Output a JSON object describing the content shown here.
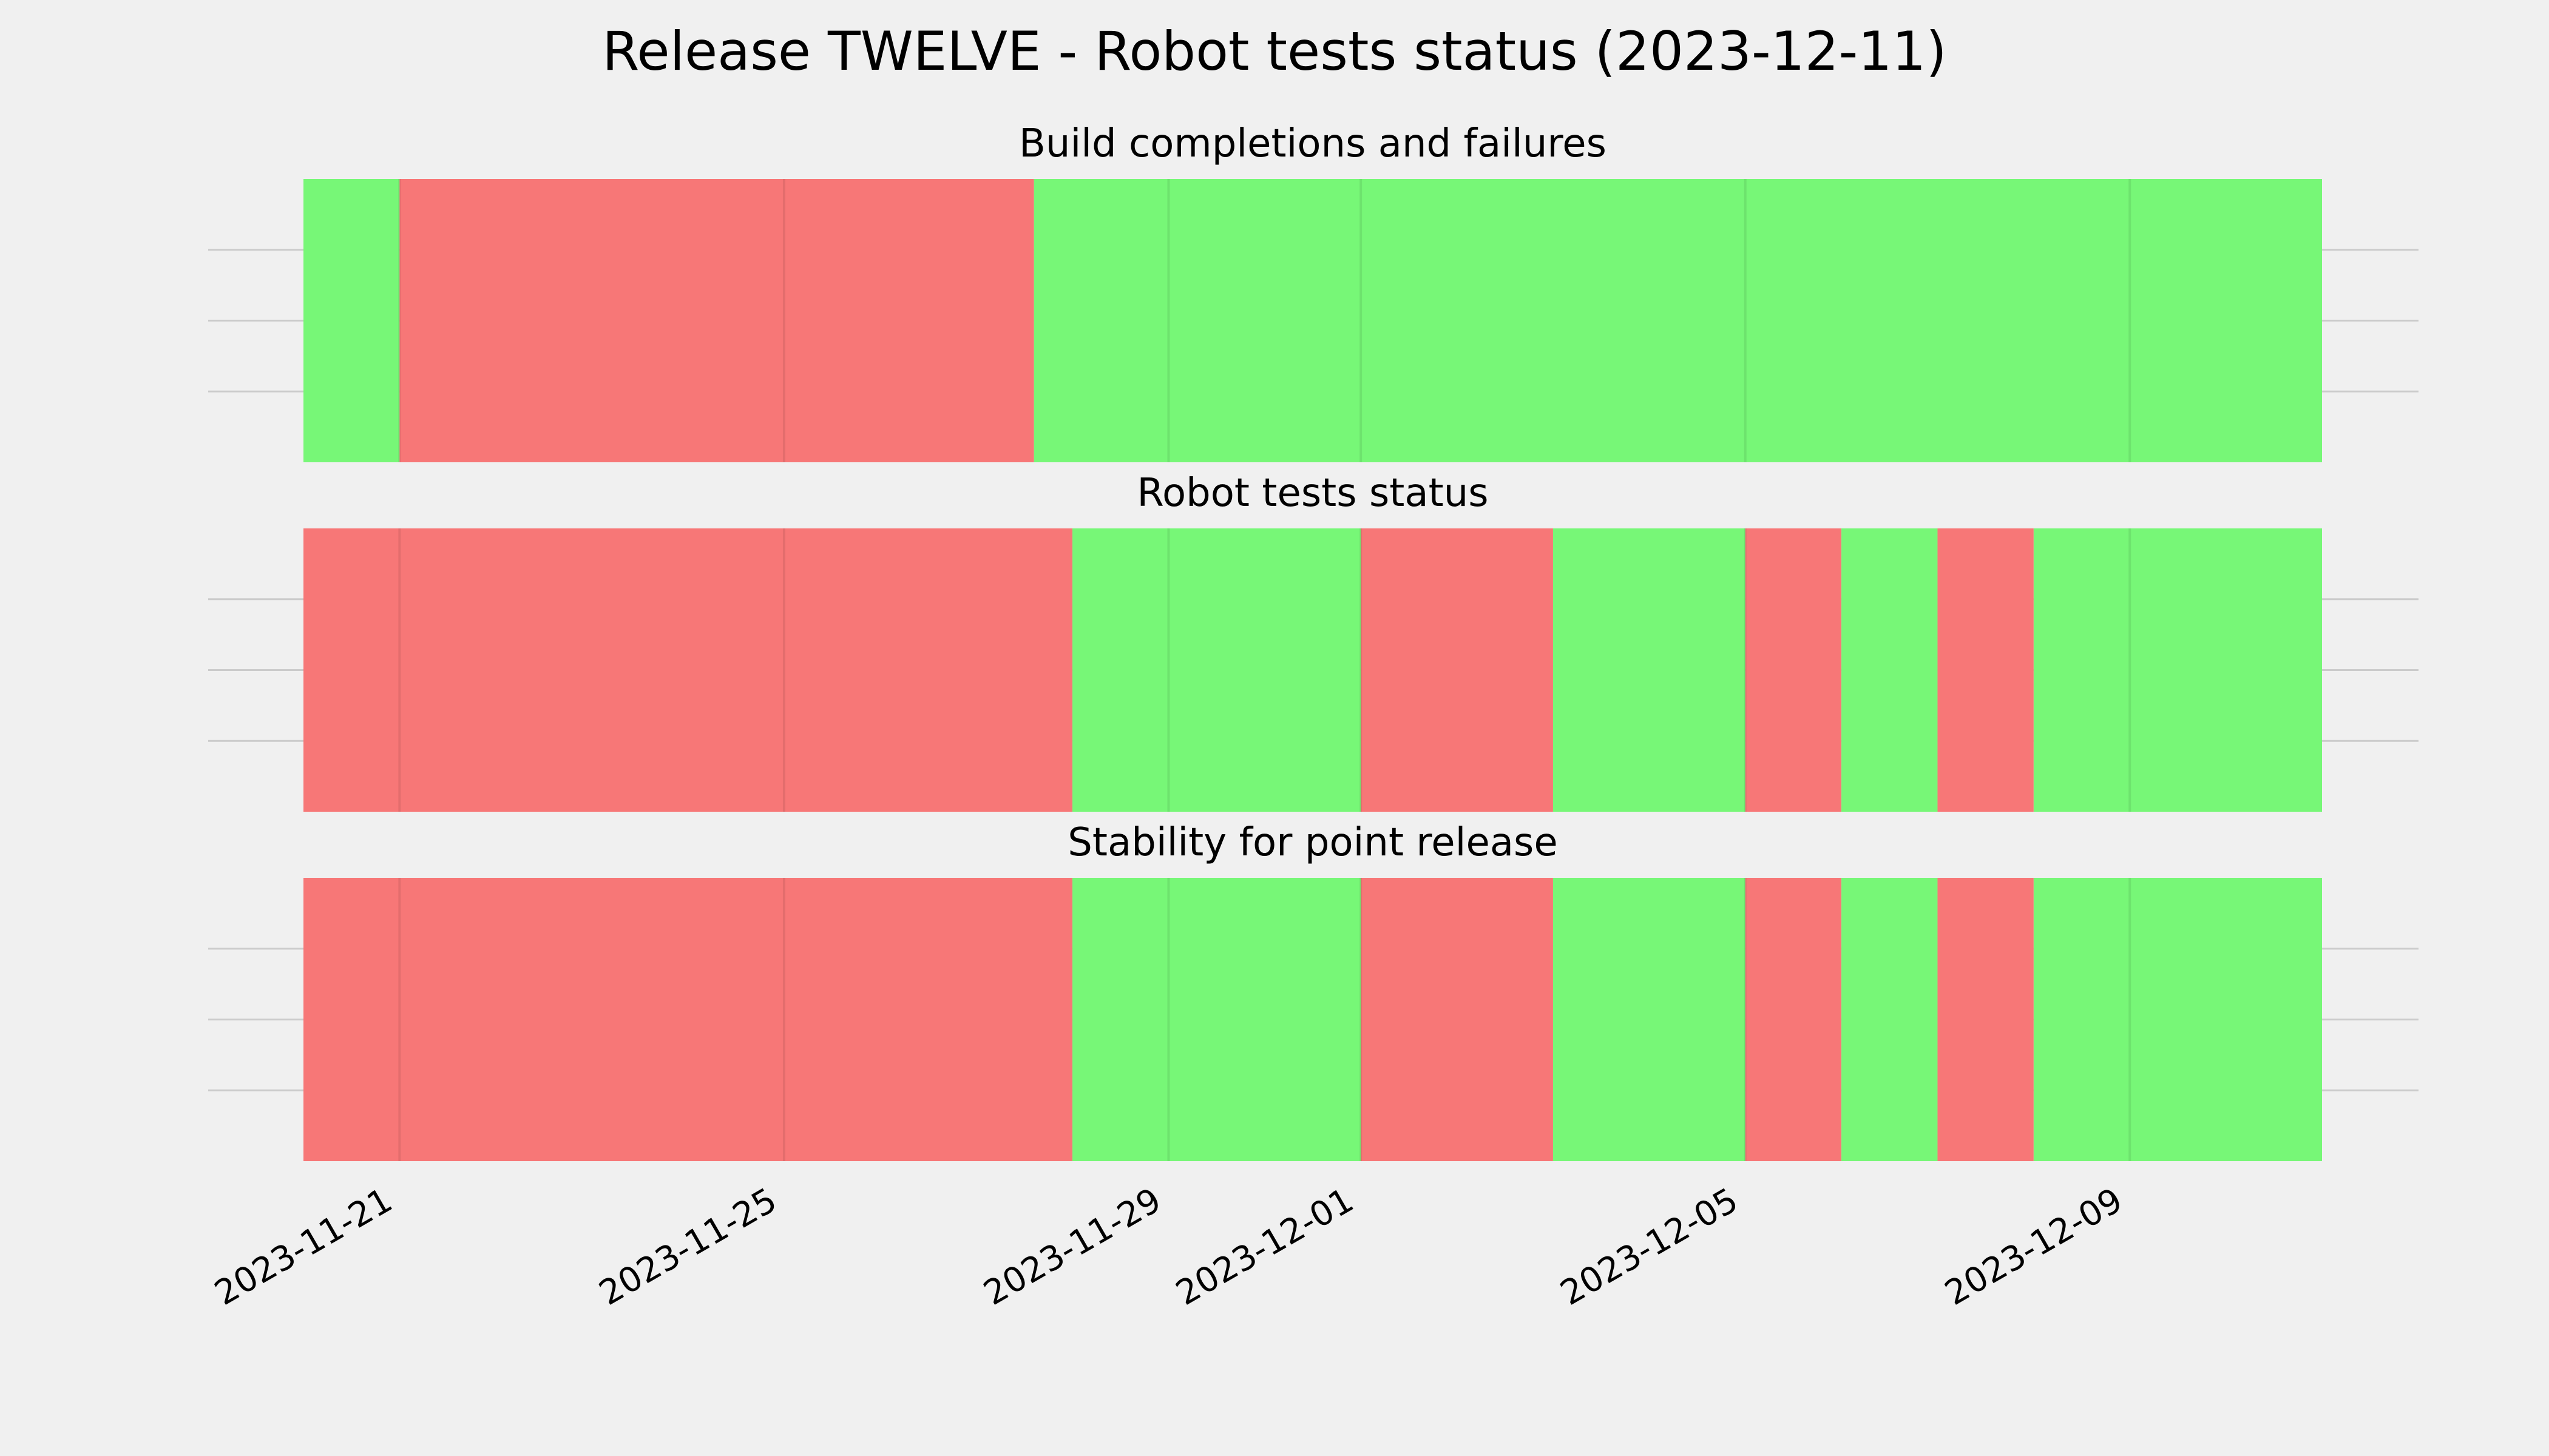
{
  "chart_data": {
    "type": "timeline",
    "title": "Release TWELVE - Robot tests status (2023-12-11)",
    "colors": {
      "pass": "#77f777",
      "fail": "#f77777",
      "background": "#f0f0f0",
      "grid": "#cbcbcb"
    },
    "x_range": [
      "2023-11-20",
      "2023-12-11"
    ],
    "x_ticks": [
      "2023-11-21",
      "2023-11-25",
      "2023-11-29",
      "2023-12-01",
      "2023-12-05",
      "2023-12-09"
    ],
    "grid": true,
    "panels": [
      {
        "title": "Build completions and failures",
        "segments": [
          {
            "start": "2023-11-20",
            "end": "2023-11-21",
            "status": "pass"
          },
          {
            "start": "2023-11-21",
            "end": "2023-11-27.6",
            "status": "fail"
          },
          {
            "start": "2023-11-27.6",
            "end": "2023-12-11",
            "status": "pass"
          }
        ]
      },
      {
        "title": "Robot tests status",
        "segments": [
          {
            "start": "2023-11-20",
            "end": "2023-11-28",
            "status": "fail"
          },
          {
            "start": "2023-11-28",
            "end": "2023-12-01",
            "status": "pass"
          },
          {
            "start": "2023-12-01",
            "end": "2023-12-03",
            "status": "fail"
          },
          {
            "start": "2023-12-03",
            "end": "2023-12-05",
            "status": "pass"
          },
          {
            "start": "2023-12-05",
            "end": "2023-12-06",
            "status": "fail"
          },
          {
            "start": "2023-12-06",
            "end": "2023-12-07",
            "status": "pass"
          },
          {
            "start": "2023-12-07",
            "end": "2023-12-08",
            "status": "fail"
          },
          {
            "start": "2023-12-08",
            "end": "2023-12-11",
            "status": "pass"
          }
        ]
      },
      {
        "title": "Stability for point release",
        "segments": [
          {
            "start": "2023-11-20",
            "end": "2023-11-28",
            "status": "fail"
          },
          {
            "start": "2023-11-28",
            "end": "2023-12-01",
            "status": "pass"
          },
          {
            "start": "2023-12-01",
            "end": "2023-12-03",
            "status": "fail"
          },
          {
            "start": "2023-12-03",
            "end": "2023-12-05",
            "status": "pass"
          },
          {
            "start": "2023-12-05",
            "end": "2023-12-06",
            "status": "fail"
          },
          {
            "start": "2023-12-06",
            "end": "2023-12-07",
            "status": "pass"
          },
          {
            "start": "2023-12-07",
            "end": "2023-12-08",
            "status": "fail"
          },
          {
            "start": "2023-12-08",
            "end": "2023-12-11",
            "status": "pass"
          }
        ]
      }
    ]
  }
}
